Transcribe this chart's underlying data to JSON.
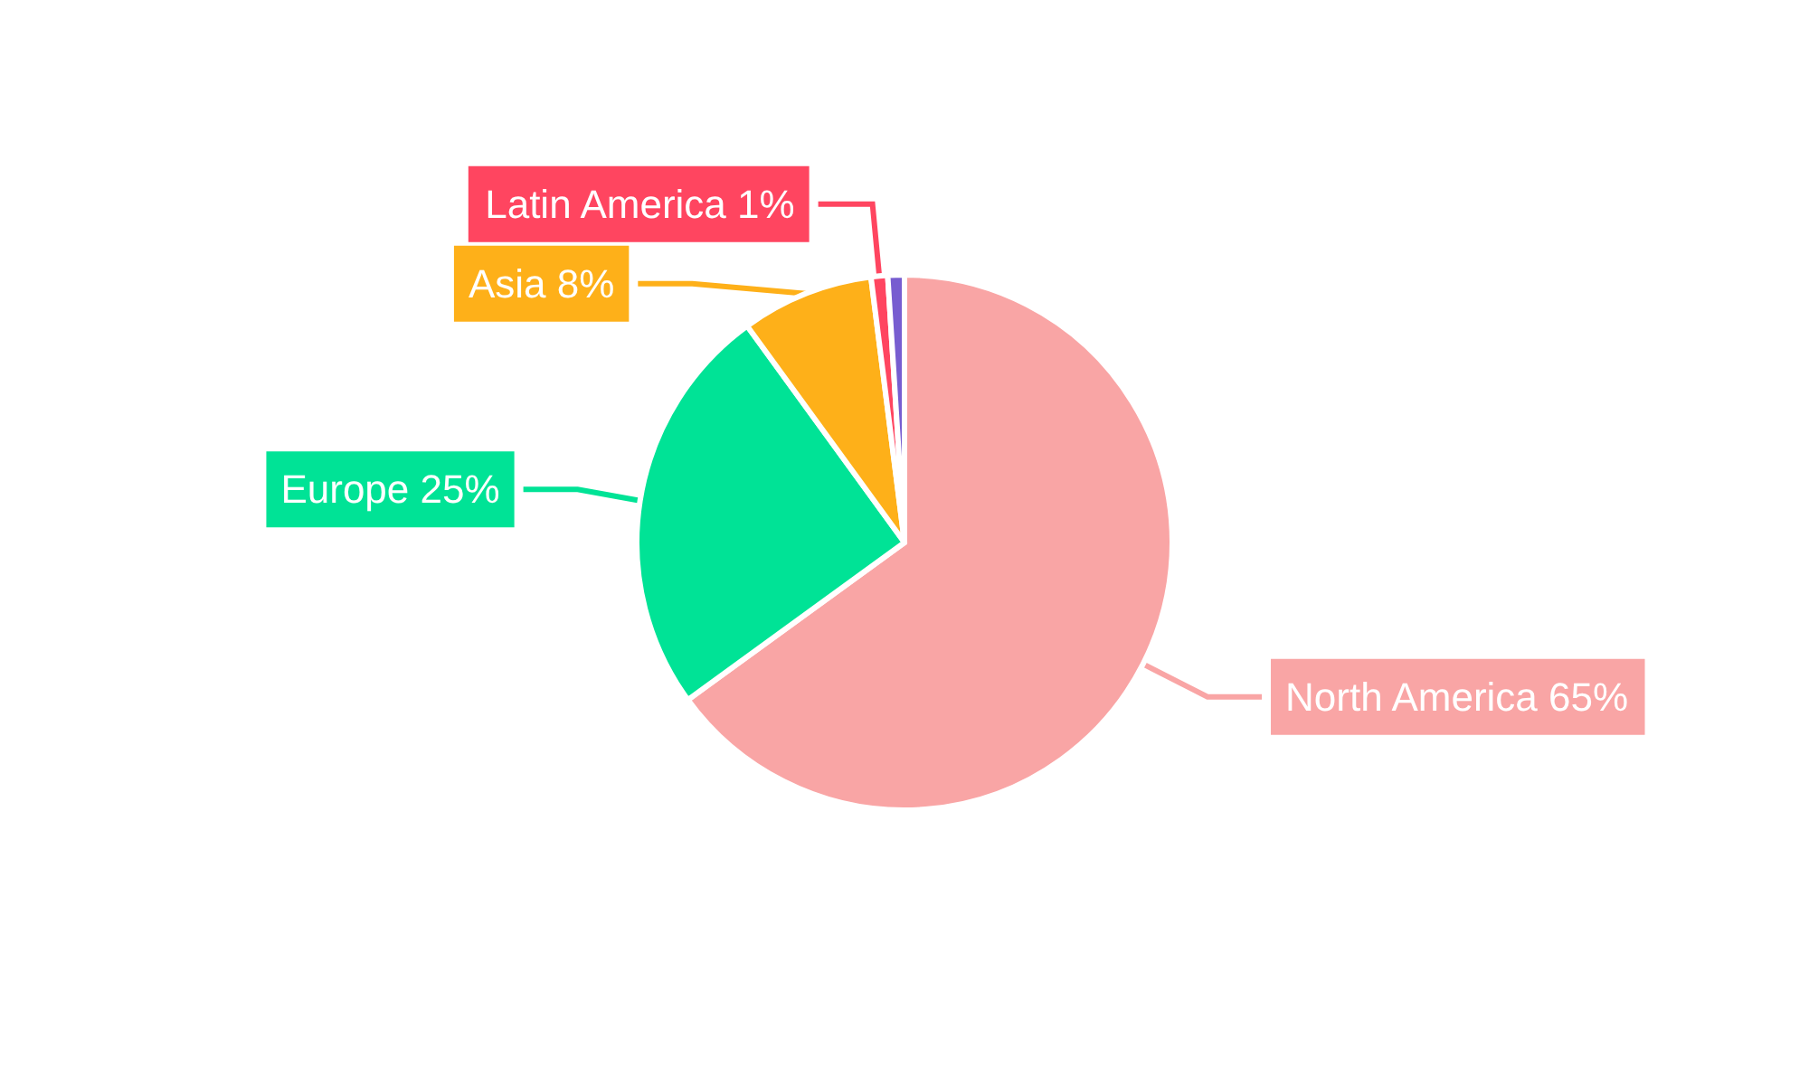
{
  "chart_data": {
    "type": "pie",
    "categories": [
      "North America",
      "Europe",
      "Asia",
      "Latin America",
      null
    ],
    "values": [
      65,
      25,
      8,
      1,
      1
    ],
    "value_labels": [
      "65%",
      "25%",
      "8%",
      "1%",
      null
    ],
    "colors": [
      "#f9a5a5",
      "#00e396",
      "#feb019",
      "#ff4560",
      "#775dd0"
    ],
    "legend": false
  }
}
